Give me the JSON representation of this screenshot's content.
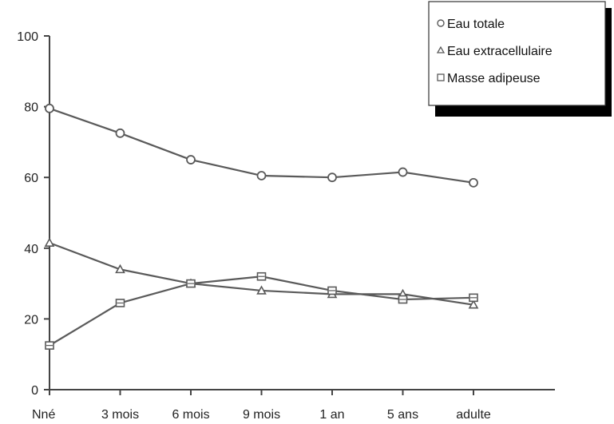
{
  "chart_data": {
    "type": "line",
    "title": "",
    "xlabel": "",
    "ylabel": "",
    "categories": [
      "Nné",
      "3 mois",
      "6 mois",
      "9 mois",
      "1 an",
      "5 ans",
      "adulte"
    ],
    "ylim": [
      0,
      100
    ],
    "yticks": [
      "0",
      "20",
      "40",
      "60",
      "80",
      "100"
    ],
    "grid": false,
    "legend_position": "top-right",
    "series": [
      {
        "name": "Eau totale",
        "marker": "circle",
        "values": [
          79.5,
          72.5,
          65,
          60.5,
          60,
          61.5,
          58.5
        ]
      },
      {
        "name": "Eau extracellulaire",
        "marker": "triangle",
        "values": [
          41.5,
          34,
          30,
          28,
          27,
          27,
          24
        ]
      },
      {
        "name": "Masse adipeuse",
        "marker": "square",
        "values": [
          12.5,
          24.5,
          30,
          32,
          28,
          25.5,
          26
        ]
      }
    ],
    "colors": {
      "line": "#5a5a5a",
      "axis": "#444444",
      "legend_shadow": "#000000"
    }
  }
}
